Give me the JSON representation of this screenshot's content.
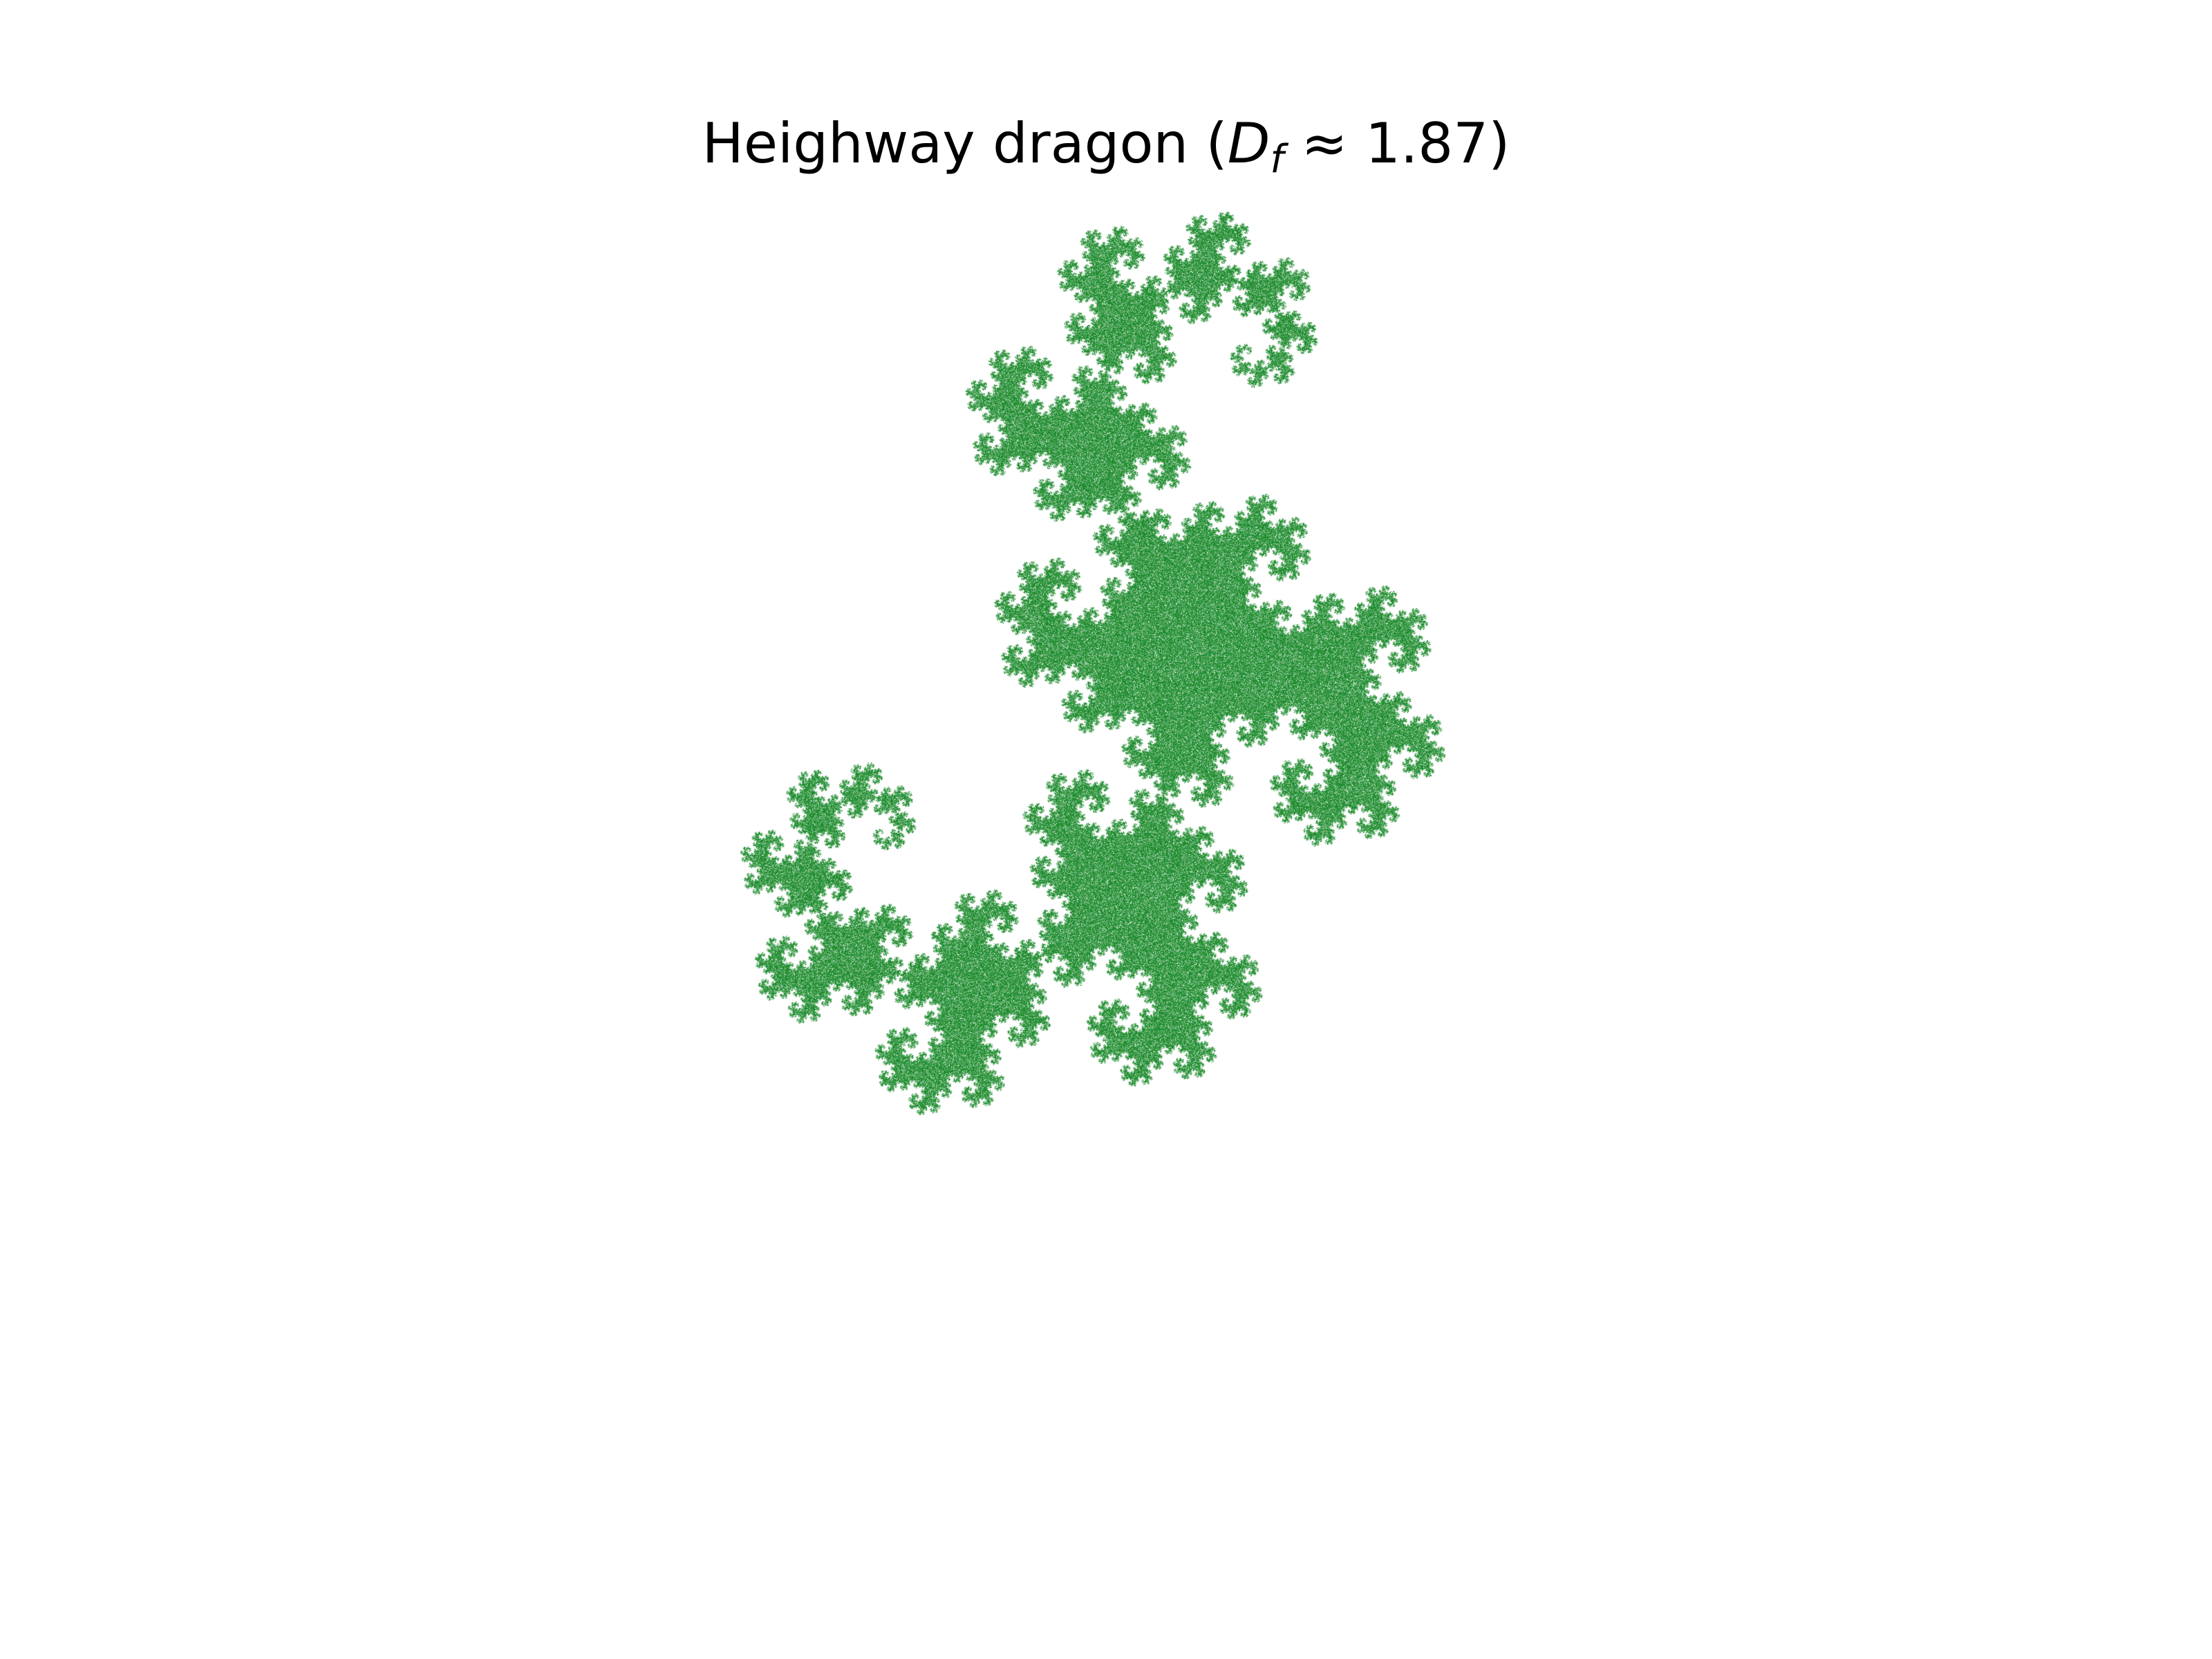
{
  "title": {
    "text_before": "Heighway dragon (",
    "symbol": "D",
    "subscript": "f",
    "text_after": " ≈ 1.87)"
  },
  "fractal": {
    "name": "Heighway dragon",
    "fractal_dimension": 1.87,
    "color": "#1e8c2e",
    "background": "#ffffff"
  }
}
